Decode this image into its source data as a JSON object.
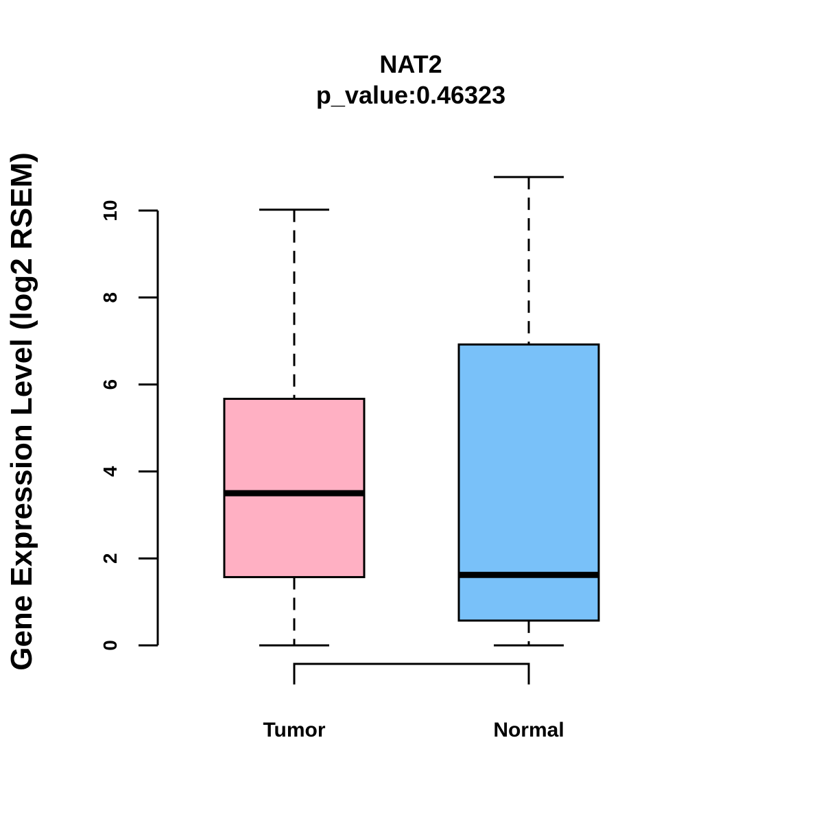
{
  "chart_data": {
    "type": "box",
    "title": "NAT2",
    "subtitle": "p_value:0.46323",
    "xlabel": "",
    "ylabel": "Gene Expression Level (log2 RSEM)",
    "ylim": [
      0,
      10
    ],
    "yticks": [
      0,
      2,
      4,
      6,
      8,
      10
    ],
    "grid": false,
    "categories": [
      "Tumor",
      "Normal"
    ],
    "boxes": [
      {
        "name": "Tumor",
        "whisker_low": 0,
        "q1": 1.57,
        "median": 3.5,
        "q3": 5.67,
        "whisker_high": 10.02,
        "color": "#FFB0C3"
      },
      {
        "name": "Normal",
        "whisker_low": 0,
        "q1": 0.57,
        "median": 1.62,
        "q3": 6.92,
        "whisker_high": 10.77,
        "color": "#79C1F9"
      }
    ],
    "comparison_bracket": [
      "Tumor",
      "Normal"
    ]
  }
}
